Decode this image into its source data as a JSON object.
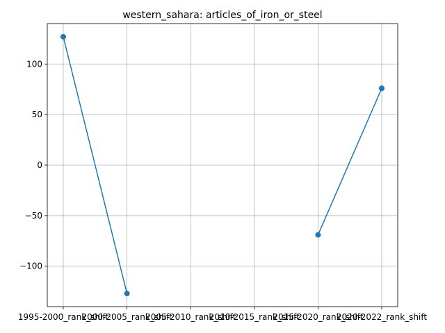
{
  "chart_data": {
    "type": "line",
    "title": "western_sahara: articles_of_iron_or_steel",
    "xlabel": "",
    "ylabel": "",
    "categories": [
      "1995-2000_rank_shift",
      "2000-2005_rank_shift",
      "2005-2010_rank_shift",
      "2010-2015_rank_shift",
      "2015-2020_rank_shift",
      "2020-2022_rank_shift"
    ],
    "series": [
      {
        "values": [
          127,
          -127,
          null,
          null,
          -69,
          76
        ],
        "color": "#1f77b4"
      }
    ],
    "ylim": [
      -140,
      140
    ],
    "yticks": [
      -100,
      -50,
      0,
      50,
      100
    ],
    "yticklabels": [
      "−100",
      "−50",
      "0",
      "50",
      "100"
    ],
    "grid": true,
    "legend": "none"
  }
}
